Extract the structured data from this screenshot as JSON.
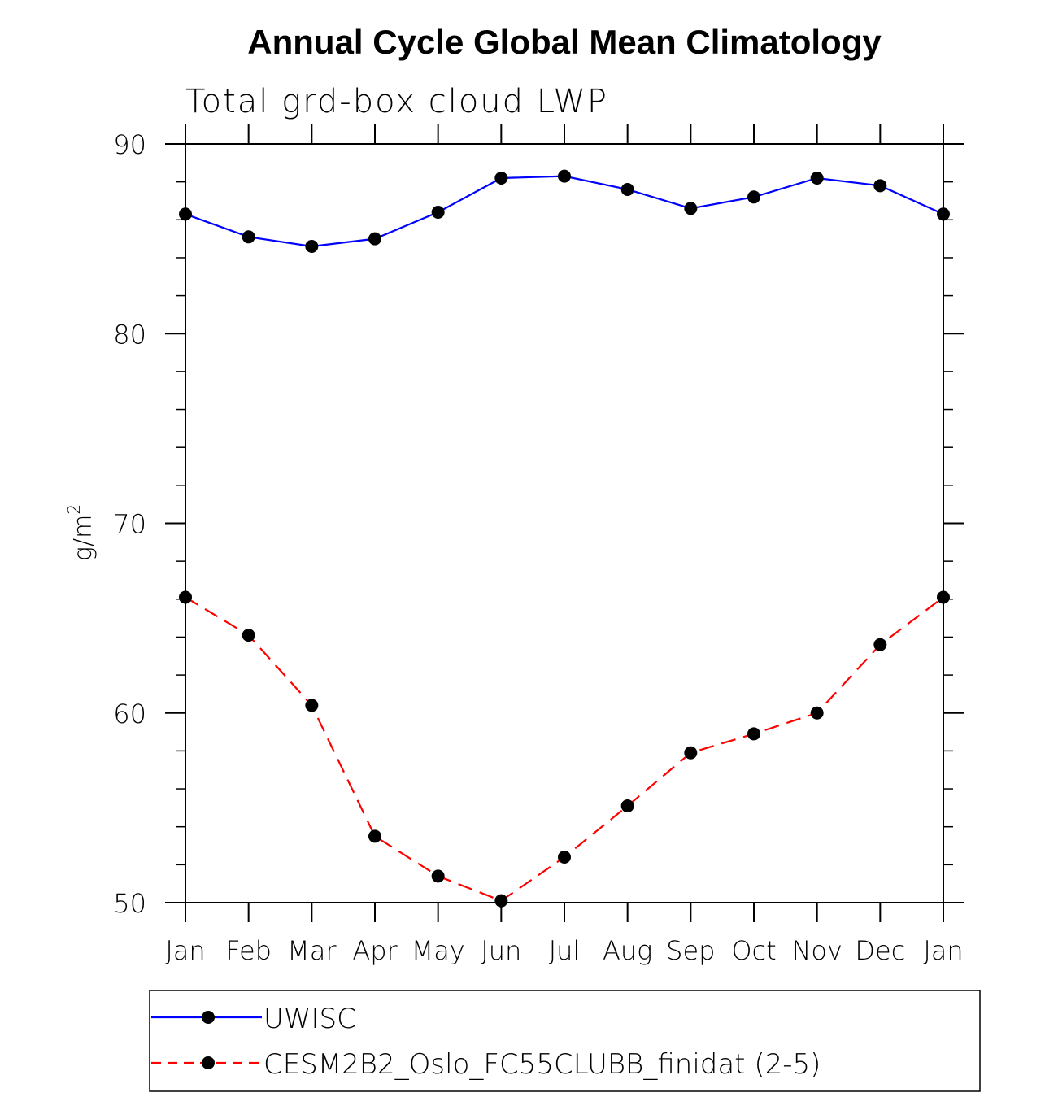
{
  "chart_data": {
    "type": "line",
    "title": "Annual Cycle Global Mean Climatology",
    "subtitle": "Total grd-box cloud LWP",
    "xlabel": "",
    "ylabel": "g/m",
    "ylabel_superscript": "2",
    "categories": [
      "Jan",
      "Feb",
      "Mar",
      "Apr",
      "May",
      "Jun",
      "Jul",
      "Aug",
      "Sep",
      "Oct",
      "Nov",
      "Dec",
      "Jan"
    ],
    "ylim": [
      50,
      90
    ],
    "yticks": [
      50,
      60,
      70,
      80,
      90
    ],
    "yticks_labels": [
      "50",
      "60",
      "70",
      "80",
      "90"
    ],
    "y_minor_step": 2,
    "grid": false,
    "legend_position": "bottom",
    "series": [
      {
        "name": "UWISC",
        "color": "#0000ff",
        "line_style": "solid",
        "marker": "filled-circle",
        "marker_color": "#000000",
        "values": [
          86.3,
          85.1,
          84.6,
          85.0,
          86.4,
          88.2,
          88.3,
          87.6,
          86.6,
          87.2,
          88.2,
          87.8,
          86.3
        ]
      },
      {
        "name": "CESM2B2_Oslo_FC55CLUBB_finidat (2-5)",
        "color": "#ff0000",
        "line_style": "dashed",
        "marker": "filled-circle",
        "marker_color": "#000000",
        "values": [
          66.1,
          64.1,
          60.4,
          53.5,
          51.4,
          50.1,
          52.4,
          55.1,
          57.9,
          58.9,
          60.0,
          63.6,
          66.1
        ]
      }
    ]
  }
}
